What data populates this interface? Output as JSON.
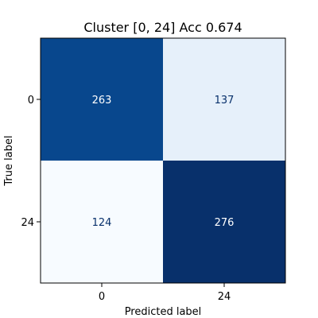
{
  "chart_data": {
    "type": "heatmap",
    "title": "Cluster [0, 24] Acc 0.674",
    "xlabel": "Predicted label",
    "ylabel": "True label",
    "x_categories": [
      "0",
      "24"
    ],
    "y_categories": [
      "0",
      "24"
    ],
    "values": [
      [
        263,
        137
      ],
      [
        124,
        276
      ]
    ],
    "color_scale": "Blues",
    "vmin": 124,
    "vmax": 276,
    "grid": false
  },
  "colors": {
    "low": "#f7fbff",
    "high": "#08306b",
    "text_on_dark": "#ffffff",
    "text_on_light": "#08306b"
  }
}
